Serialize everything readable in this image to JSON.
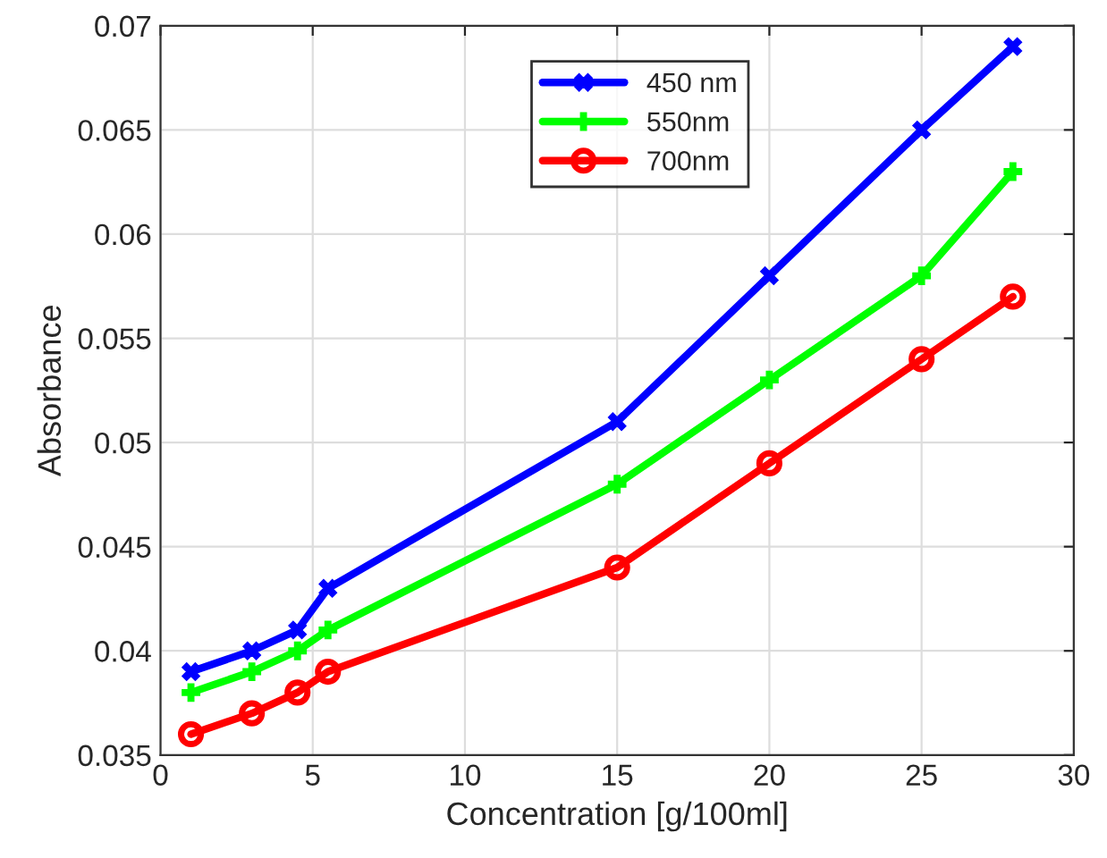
{
  "chart_data": {
    "type": "line",
    "xlabel": "Concentration [g/100ml]",
    "ylabel": "Absorbance",
    "x": [
      1,
      3,
      4.5,
      5.5,
      15,
      20,
      25,
      28
    ],
    "series": [
      {
        "name": "450 nm",
        "color": "#0000ff",
        "marker": "cross",
        "values": [
          0.039,
          0.04,
          0.041,
          0.043,
          0.051,
          0.058,
          0.065,
          0.069
        ]
      },
      {
        "name": "550nm",
        "color": "#00ff00",
        "marker": "cross",
        "values": [
          0.038,
          0.039,
          0.04,
          0.041,
          0.048,
          0.053,
          0.058,
          0.063
        ]
      },
      {
        "name": "700nm",
        "color": "#ff0000",
        "marker": "circle",
        "values": [
          0.036,
          0.037,
          0.038,
          0.039,
          0.044,
          0.049,
          0.054,
          0.057
        ]
      }
    ],
    "xlim": [
      0,
      30
    ],
    "xticks": [
      0,
      5,
      10,
      15,
      20,
      25,
      30
    ],
    "ylim": [
      0.035,
      0.07
    ],
    "yticks": [
      0.035,
      0.04,
      0.045,
      0.05,
      0.055,
      0.06,
      0.065,
      0.07
    ],
    "grid": true,
    "legend": "top",
    "line_style": "solid"
  }
}
